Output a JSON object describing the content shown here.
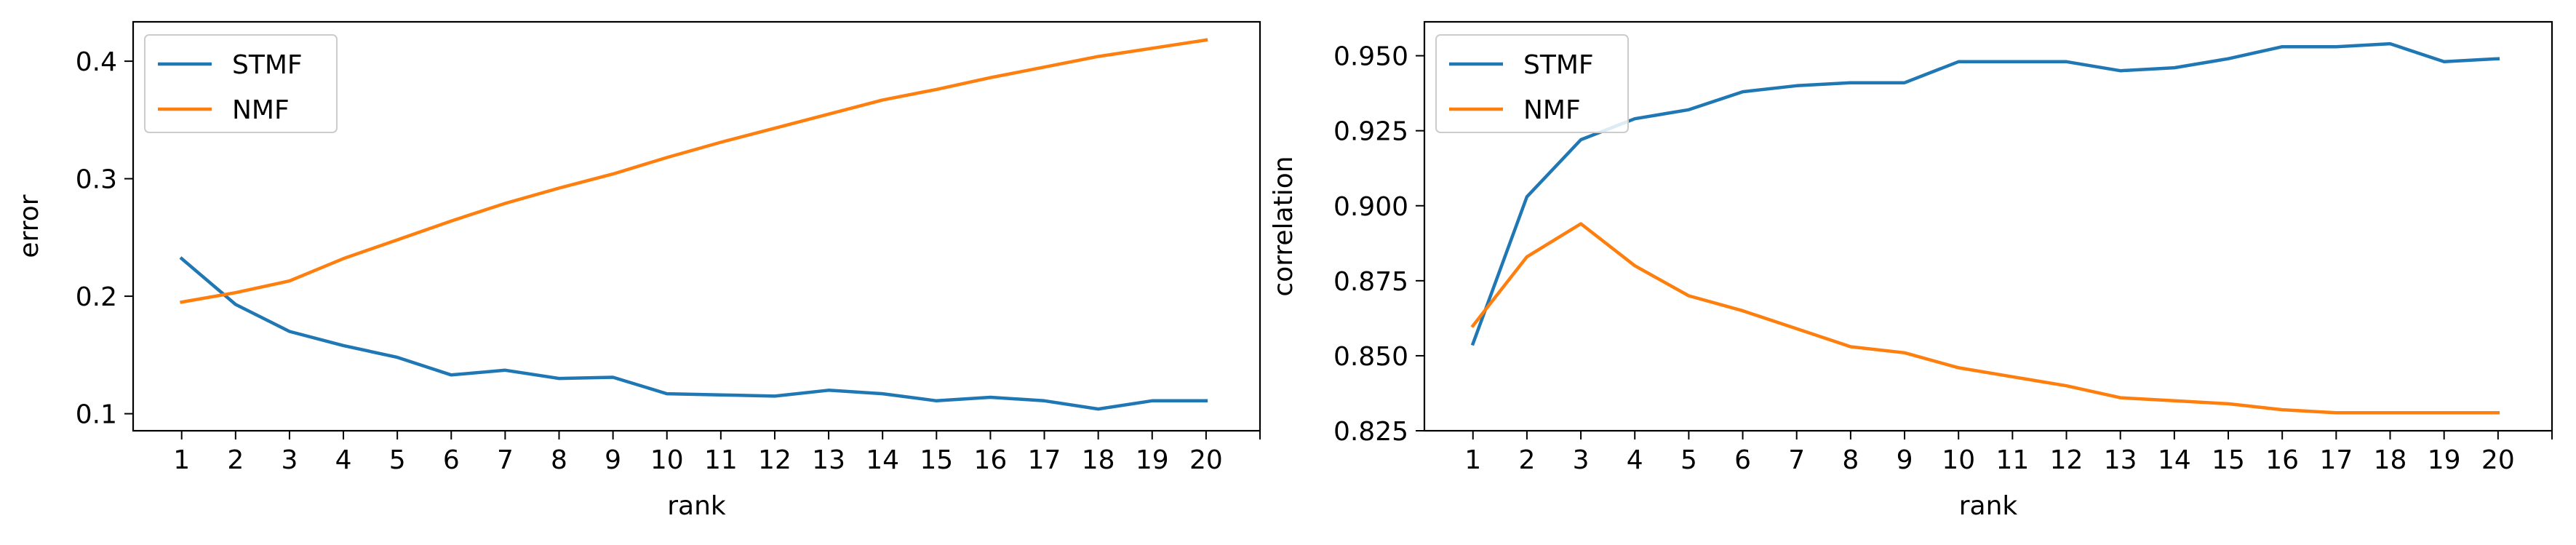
{
  "chart_data": [
    {
      "type": "line",
      "xlabel": "rank",
      "ylabel": "error",
      "x": [
        1,
        2,
        3,
        4,
        5,
        6,
        7,
        8,
        9,
        10,
        11,
        12,
        13,
        14,
        15,
        16,
        17,
        18,
        19,
        20
      ],
      "xlim": [
        0.1,
        21
      ],
      "ylim": [
        0.0855,
        0.4335
      ],
      "yticks": [
        "0.1",
        "0.2",
        "0.3",
        "0.4"
      ],
      "ytick_values": [
        0.1,
        0.2,
        0.3,
        0.4
      ],
      "legend_position": "upper-left",
      "series": [
        {
          "name": "STMF",
          "color": "#1f77b4",
          "values": [
            0.232,
            0.193,
            0.17,
            0.158,
            0.148,
            0.133,
            0.137,
            0.13,
            0.131,
            0.117,
            0.116,
            0.115,
            0.12,
            0.117,
            0.111,
            0.114,
            0.111,
            0.104,
            0.111,
            0.111
          ]
        },
        {
          "name": "NMF",
          "color": "#ff7f0e",
          "values": [
            0.195,
            0.203,
            0.213,
            0.232,
            0.248,
            0.264,
            0.279,
            0.292,
            0.304,
            0.318,
            0.331,
            0.343,
            0.355,
            0.367,
            0.376,
            0.386,
            0.395,
            0.404,
            0.411,
            0.418
          ]
        }
      ]
    },
    {
      "type": "line",
      "xlabel": "rank",
      "ylabel": "correlation",
      "x": [
        1,
        2,
        3,
        4,
        5,
        6,
        7,
        8,
        9,
        10,
        11,
        12,
        13,
        14,
        15,
        16,
        17,
        18,
        19,
        20
      ],
      "xlim": [
        0.1,
        21
      ],
      "ylim": [
        0.825,
        0.9613
      ],
      "yticks": [
        "0.825",
        "0.850",
        "0.875",
        "0.900",
        "0.925",
        "0.950"
      ],
      "ytick_values": [
        0.825,
        0.85,
        0.875,
        0.9,
        0.925,
        0.95
      ],
      "legend_position": "upper-left",
      "series": [
        {
          "name": "STMF",
          "color": "#1f77b4",
          "values": [
            0.854,
            0.903,
            0.922,
            0.929,
            0.932,
            0.938,
            0.94,
            0.941,
            0.941,
            0.948,
            0.948,
            0.948,
            0.945,
            0.946,
            0.949,
            0.953,
            0.953,
            0.954,
            0.948,
            0.949
          ]
        },
        {
          "name": "NMF",
          "color": "#ff7f0e",
          "values": [
            0.86,
            0.883,
            0.894,
            0.88,
            0.87,
            0.865,
            0.859,
            0.853,
            0.851,
            0.846,
            0.843,
            0.84,
            0.836,
            0.835,
            0.834,
            0.832,
            0.831,
            0.831,
            0.831,
            0.831
          ]
        }
      ]
    }
  ]
}
